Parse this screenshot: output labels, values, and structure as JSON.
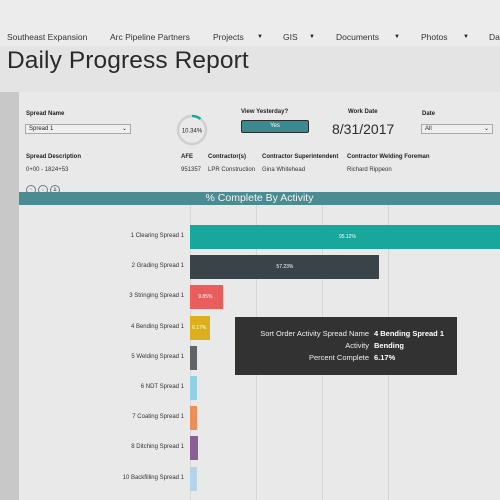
{
  "nav": {
    "items": [
      {
        "label": "Southeast Expansion",
        "dropdown": false
      },
      {
        "label": "Arc Pipeline Partners",
        "dropdown": false
      },
      {
        "label": "Projects",
        "dropdown": true
      },
      {
        "label": "GIS",
        "dropdown": true
      },
      {
        "label": "Documents",
        "dropdown": true
      },
      {
        "label": "Photos",
        "dropdown": true
      },
      {
        "label": "Da",
        "dropdown": false
      }
    ]
  },
  "page": {
    "title": "Daily Progress Report"
  },
  "filters": {
    "spread_name_label": "Spread Name",
    "spread_name_value": "Spread 1",
    "percent_complete": "10.34%",
    "percent_complete_fraction": 0.1034,
    "view_yesterday_label": "View Yesterday?",
    "view_yesterday_value": "Yes",
    "work_date_label": "Work Date",
    "work_date_value": "8/31/2017",
    "date_label": "Date",
    "date_value": "All"
  },
  "details": {
    "spread_description_label": "Spread Description",
    "spread_description_value": "0+00 - 1824+53",
    "afe_label": "AFE",
    "afe_value": "951357",
    "contractor_label": "Contractor(s)",
    "contractor_value": "LPR Construction",
    "superintendent_label": "Contractor Superintendent",
    "superintendent_value": "Gina Whitehead",
    "welding_foreman_label": "Contractor Welding Foreman",
    "welding_foreman_value": "Richard Rippeon"
  },
  "chart_data": {
    "type": "bar",
    "orientation": "horizontal",
    "title": "% Complete By Activity",
    "categories": [
      "1 Clearing Spread 1",
      "2 Grading Spread 1",
      "3 Stringing Spread 1",
      "4 Bending Spread 1",
      "5 Welding Spread 1",
      "6 NDT Spread 1",
      "7 Coating Spread 1",
      "8 Ditching Spread 1",
      "10 Backfilling Spread 1"
    ],
    "values": [
      95.12,
      57.23,
      9.85,
      6.17,
      2.1,
      1.3,
      1.1,
      2.4,
      1.5
    ],
    "data_labels": [
      "95.12%",
      "57.23%",
      "9.85%",
      "6.17%",
      "",
      "",
      "",
      "",
      ""
    ],
    "colors": [
      "#17a89b",
      "#3a4448",
      "#e95d5d",
      "#dbb01c",
      "#5f6466",
      "#94cfe4",
      "#ef8d59",
      "#8a5f98",
      "#b6d3e7"
    ],
    "xlim": [
      0,
      100
    ],
    "grid": true
  },
  "tooltip": {
    "rows": [
      {
        "key": "Sort Order Activity Spread Name",
        "value": "4 Bending Spread 1"
      },
      {
        "key": "Activity",
        "value": "Bending"
      },
      {
        "key": "Percent Complete",
        "value": "6.17%"
      }
    ]
  }
}
